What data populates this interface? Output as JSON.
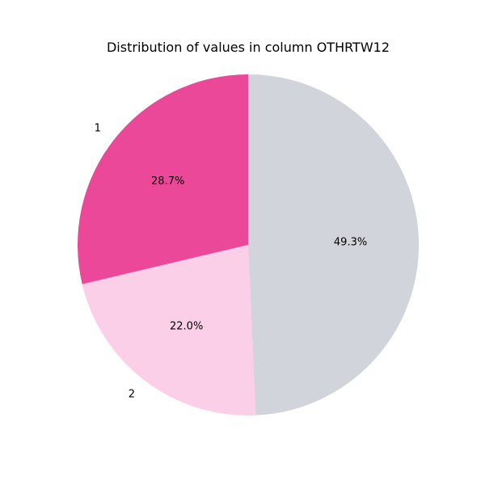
{
  "chart_data": {
    "type": "pie",
    "title": "Distribution of values in column OTHRTW12",
    "start_angle_deg": 90,
    "direction": "counterclockwise",
    "slices": [
      {
        "label": "1",
        "value": 28.7,
        "pct_label": "28.7%",
        "color": "#EC4899"
      },
      {
        "label": "2",
        "value": 22.0,
        "pct_label": "22.0%",
        "color": "#FBCFE8"
      },
      {
        "label": "",
        "value": 49.3,
        "pct_label": "49.3%",
        "color": "#D1D5DB"
      }
    ]
  }
}
